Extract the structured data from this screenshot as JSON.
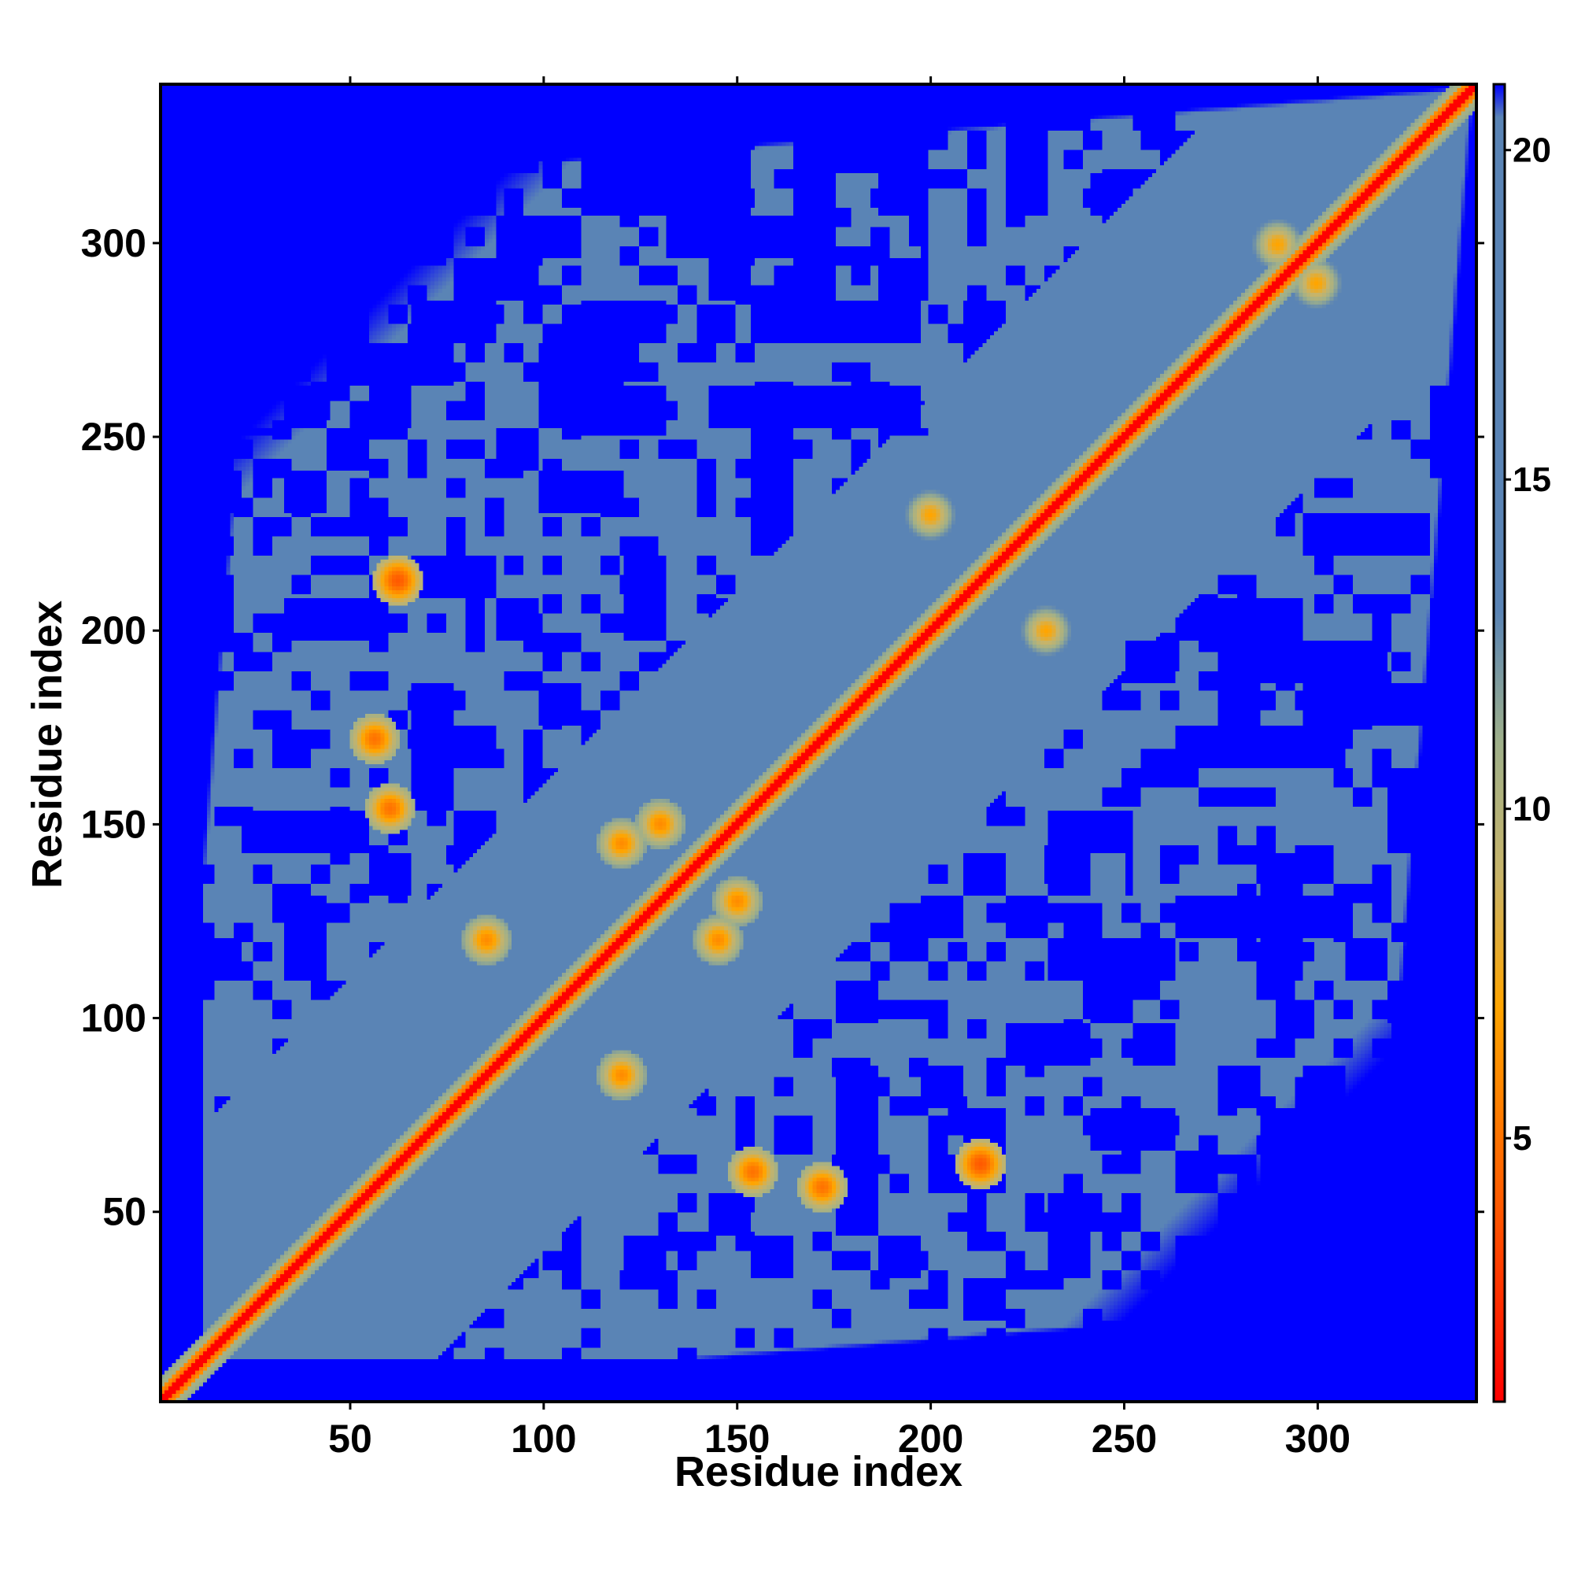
{
  "chart_data": {
    "type": "heatmap",
    "title": "",
    "xlabel": "Residue index",
    "ylabel": "Residue index",
    "xlim": [
      1,
      341
    ],
    "ylim": [
      1,
      341
    ],
    "x_ticks": [
      50,
      100,
      150,
      200,
      250,
      300
    ],
    "y_ticks": [
      50,
      100,
      150,
      200,
      250,
      300
    ],
    "n_residues": 341,
    "colorbar": {
      "range": [
        1,
        21
      ],
      "ticks": [
        5,
        10,
        15,
        20
      ],
      "colors": {
        "contact": "#ff0000",
        "near": "#ff9a00",
        "mid": "#9fb08a",
        "far": "#5a84b5",
        "very_far": "#0000ff"
      },
      "stops": [
        {
          "value": 1,
          "color": "#ff0000"
        },
        {
          "value": 4,
          "color": "#ff5a00"
        },
        {
          "value": 7,
          "color": "#ffa500"
        },
        {
          "value": 9,
          "color": "#c7b46a"
        },
        {
          "value": 11,
          "color": "#9fb08a"
        },
        {
          "value": 13,
          "color": "#5a84b5"
        },
        {
          "value": 20.5,
          "color": "#5a84b5"
        },
        {
          "value": 21,
          "color": "#0000ff"
        }
      ]
    },
    "diagonal": {
      "value": 1
    },
    "contacts": [
      {
        "i": 62,
        "j": 213,
        "value": 4
      },
      {
        "i": 213,
        "j": 62,
        "value": 4
      },
      {
        "i": 56,
        "j": 172,
        "value": 5
      },
      {
        "i": 172,
        "j": 56,
        "value": 5
      },
      {
        "i": 154,
        "j": 60,
        "value": 5
      },
      {
        "i": 60,
        "j": 154,
        "value": 5
      },
      {
        "i": 130,
        "j": 150,
        "value": 6
      },
      {
        "i": 150,
        "j": 130,
        "value": 6
      },
      {
        "i": 120,
        "j": 145,
        "value": 6
      },
      {
        "i": 145,
        "j": 120,
        "value": 6
      },
      {
        "i": 85,
        "j": 120,
        "value": 6
      },
      {
        "i": 120,
        "j": 85,
        "value": 6
      },
      {
        "i": 290,
        "j": 300,
        "value": 7
      },
      {
        "i": 300,
        "j": 290,
        "value": 7
      },
      {
        "i": 200,
        "j": 230,
        "value": 7
      },
      {
        "i": 230,
        "j": 200,
        "value": 7
      }
    ]
  }
}
